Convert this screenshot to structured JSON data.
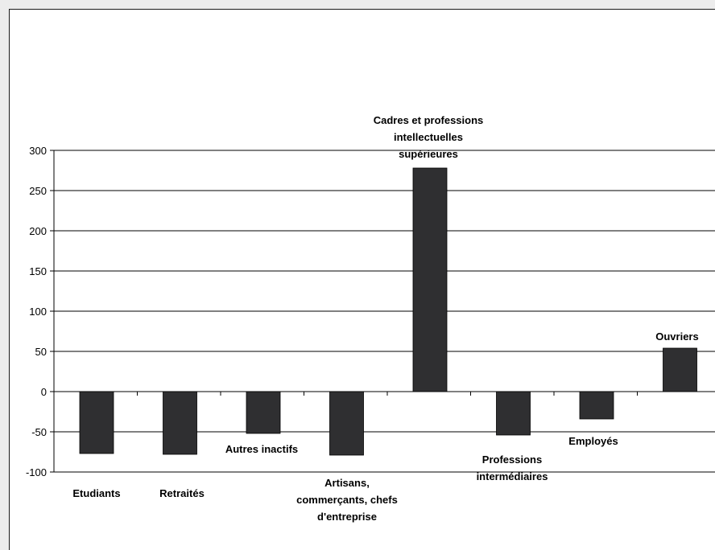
{
  "chart_data": {
    "type": "bar",
    "title": "",
    "xlabel": "",
    "ylabel": "",
    "ylim": [
      -100,
      300
    ],
    "yticks": [
      300,
      250,
      200,
      150,
      100,
      50,
      0,
      -50,
      -100
    ],
    "grid": true,
    "legend": "none",
    "categories": [
      "Etudiants",
      "Retraités",
      "Autres inactifs",
      "Artisans, commerçants, chefs d'entreprise",
      "Cadres et professions intellectuelles supérieures",
      "Professions intermédiaires",
      "Employés",
      "Ouvriers"
    ],
    "category_label_lines": [
      [
        "Etudiants"
      ],
      [
        "Retraités"
      ],
      [
        "Autres inactifs"
      ],
      [
        "Artisans,",
        "commerçants, chefs",
        "d'entreprise"
      ],
      [
        "Cadres et professions",
        "intellectuelles",
        "supérieures"
      ],
      [
        "Professions",
        "intermédiaires"
      ],
      [
        "Employés"
      ],
      [
        "Ouvriers"
      ]
    ],
    "values": [
      -77,
      -78,
      -52,
      -79,
      278,
      -54,
      -34,
      54
    ],
    "bar_color": "#2f2f31"
  }
}
